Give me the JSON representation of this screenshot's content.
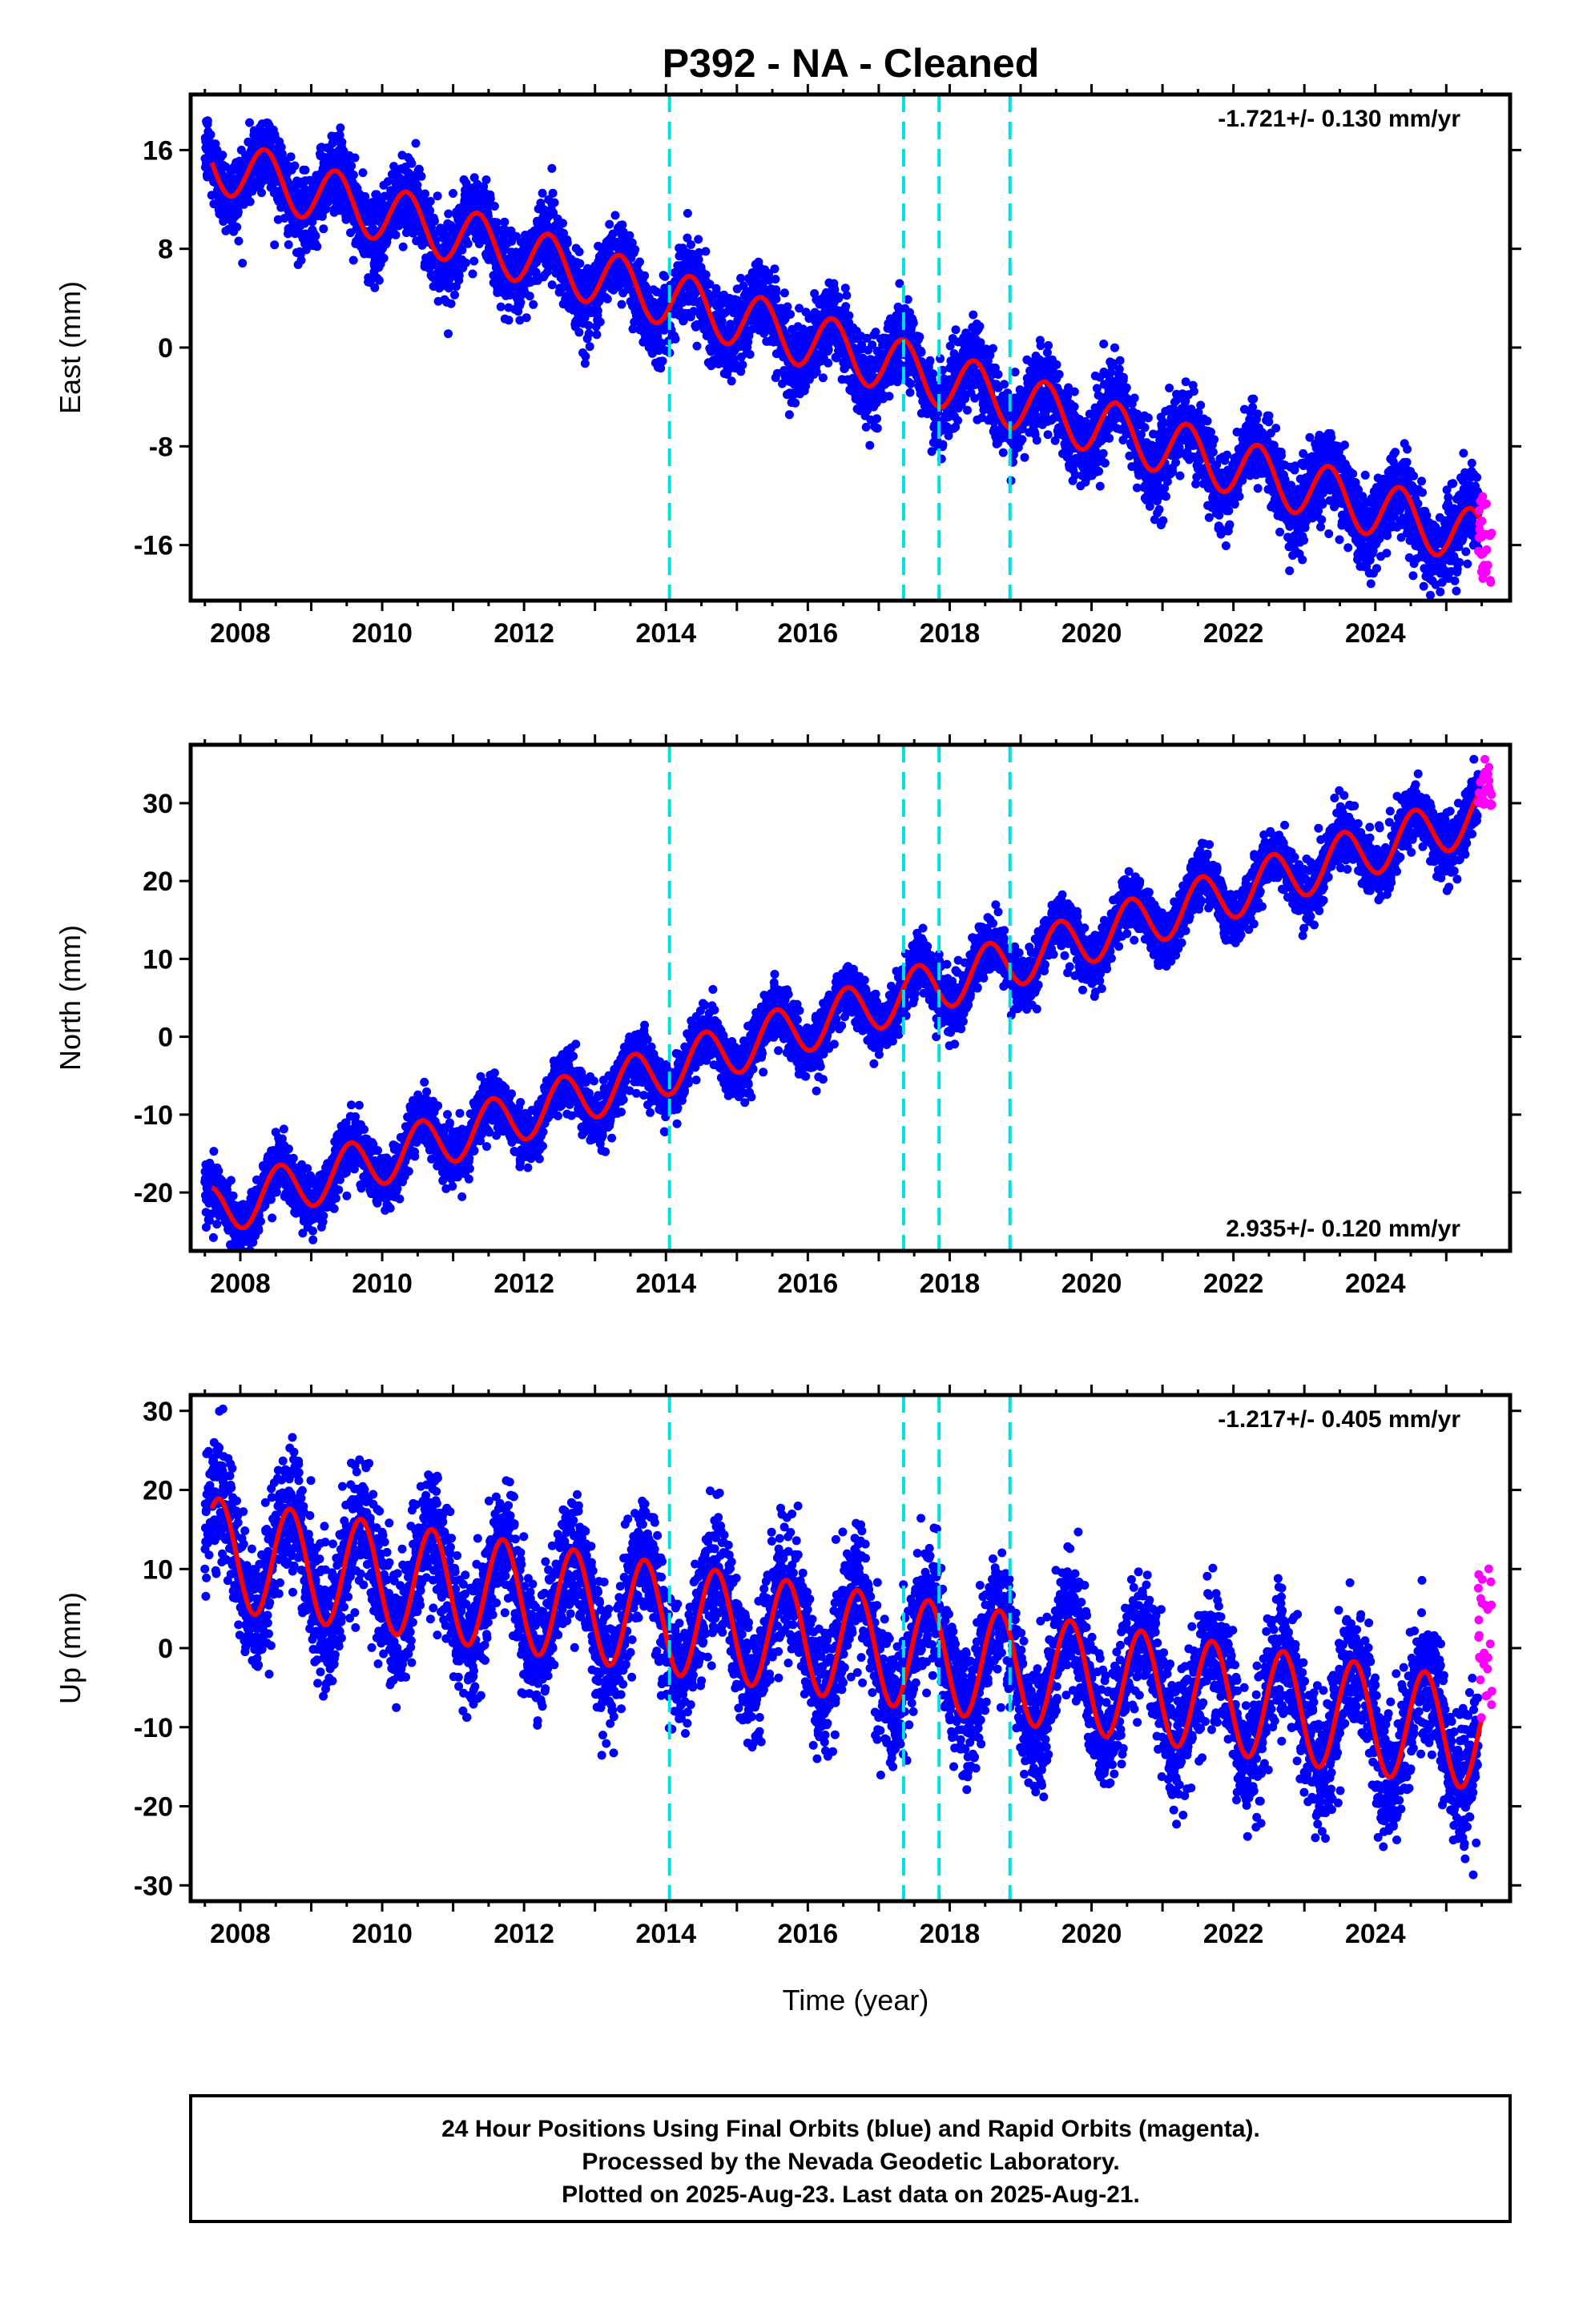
{
  "chart_data": [
    {
      "type": "scatter",
      "title": "P392  - NA - Cleaned",
      "ylabel": "East (mm)",
      "xlabel": "",
      "xlim": [
        2007.3,
        2025.9
      ],
      "ylim": [
        -20.5,
        20.5
      ],
      "yticks": [
        16,
        8,
        0,
        -8,
        -16
      ],
      "xticks": [
        2008,
        2010,
        2012,
        2014,
        2016,
        2018,
        2020,
        2022,
        2024
      ],
      "rate_label": "-1.721+/- 0.130 mm/yr",
      "rate_position": "top-right",
      "grid": false,
      "offsets": [
        2014.05,
        2017.35,
        2017.85,
        2018.85
      ],
      "model": {
        "start": [
          2007.6,
          15.0
        ],
        "end": [
          2025.5,
          -15.6
        ],
        "annual_amplitude": 2.3,
        "peak_phase": 0.35
      },
      "final_orbits": {
        "x_range": [
          2007.5,
          2025.45
        ],
        "scatter_mm": 1.6
      },
      "rapid_orbits": {
        "x_range": [
          2025.45,
          2025.65
        ],
        "y_range": [
          -19.5,
          -12
        ]
      },
      "colors": {
        "final": "#0000ff",
        "rapid": "#ff00ff",
        "model": "#ff0000",
        "offset": "#00e0e0"
      }
    },
    {
      "type": "scatter",
      "title": "",
      "ylabel": "North (mm)",
      "xlabel": "",
      "xlim": [
        2007.3,
        2025.9
      ],
      "ylim": [
        -27.5,
        37.5
      ],
      "yticks": [
        30,
        20,
        10,
        0,
        -10,
        -20
      ],
      "xticks": [
        2008,
        2010,
        2012,
        2014,
        2016,
        2018,
        2020,
        2022,
        2024
      ],
      "rate_label": "2.935+/- 0.120 mm/yr",
      "rate_position": "bottom-right",
      "grid": false,
      "offsets": [
        2014.05,
        2017.35,
        2017.85,
        2018.85
      ],
      "model": {
        "start": [
          2007.6,
          -22.5
        ],
        "end": [
          2025.5,
          28.5
        ],
        "annual_amplitude": 3.3,
        "peak_phase": 0.55
      },
      "final_orbits": {
        "x_range": [
          2007.5,
          2025.45
        ],
        "scatter_mm": 1.8
      },
      "rapid_orbits": {
        "x_range": [
          2025.45,
          2025.65
        ],
        "y_range": [
          29,
          36
        ]
      },
      "colors": {
        "final": "#0000ff",
        "rapid": "#ff00ff",
        "model": "#ff0000",
        "offset": "#00e0e0"
      }
    },
    {
      "type": "scatter",
      "title": "",
      "ylabel": "Up (mm)",
      "xlabel": "Time (year)",
      "xlim": [
        2007.3,
        2025.9
      ],
      "ylim": [
        -32,
        32
      ],
      "yticks": [
        30,
        20,
        10,
        0,
        -10,
        -20,
        -30
      ],
      "xticks": [
        2008,
        2010,
        2012,
        2014,
        2016,
        2018,
        2020,
        2022,
        2024
      ],
      "rate_label": "-1.217+/- 0.405 mm/yr",
      "rate_position": "top-right",
      "grid": false,
      "offsets": [
        2014.05,
        2017.35,
        2017.85,
        2018.85
      ],
      "model": {
        "start": [
          2007.6,
          12.0
        ],
        "end": [
          2025.5,
          -11.0
        ],
        "annual_amplitude": 7.0,
        "peak_phase": 0.7
      },
      "final_orbits": {
        "x_range": [
          2007.5,
          2025.45
        ],
        "scatter_mm": 4.0
      },
      "rapid_orbits": {
        "x_range": [
          2025.45,
          2025.65
        ],
        "y_range": [
          -9,
          10.5
        ]
      },
      "colors": {
        "final": "#0000ff",
        "rapid": "#ff00ff",
        "model": "#ff0000",
        "offset": "#00e0e0"
      }
    }
  ],
  "footer": {
    "line1": "24 Hour Positions Using Final Orbits (blue) and Rapid Orbits (magenta).",
    "line2": "Processed by the Nevada Geodetic Laboratory.",
    "line3": "Plotted on 2025-Aug-23. Last data on 2025-Aug-21."
  }
}
